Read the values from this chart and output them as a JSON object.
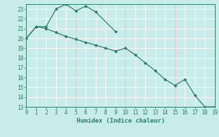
{
  "xlabel": "Humidex (Indice chaleur)",
  "bg_color": "#c8ece9",
  "grid_color_white": "#ffffff",
  "grid_color_pink": "#e8c8c8",
  "line_color": "#2d7a6a",
  "x_values": [
    0,
    1,
    2,
    3,
    4,
    5,
    6,
    7,
    8,
    9,
    10,
    11,
    12,
    13,
    14,
    15,
    16,
    17,
    18,
    19
  ],
  "curve1_y": [
    20.0,
    21.2,
    21.2,
    23.0,
    23.5,
    22.8,
    23.3,
    22.7,
    null,
    20.7,
    null,
    null,
    null,
    null,
    null,
    null,
    null,
    null,
    null,
    null
  ],
  "curve2_y": [
    20.0,
    21.2,
    21.0,
    20.6,
    20.2,
    19.9,
    19.6,
    19.3,
    19.0,
    18.7,
    19.0,
    18.3,
    17.5,
    16.7,
    15.8,
    15.2,
    15.8,
    14.2,
    13.0,
    13.0
  ],
  "xlim": [
    0,
    19
  ],
  "ylim": [
    13,
    23.5
  ],
  "yticks": [
    13,
    14,
    15,
    16,
    17,
    18,
    19,
    20,
    21,
    22,
    23
  ],
  "xticks": [
    0,
    1,
    2,
    3,
    4,
    5,
    6,
    7,
    8,
    9,
    10,
    11,
    12,
    13,
    14,
    15,
    16,
    17,
    18,
    19
  ],
  "pink_x": [
    5,
    10,
    15
  ],
  "pink_y": [
    14,
    15,
    16,
    17,
    18,
    19,
    20,
    21,
    22,
    23
  ]
}
